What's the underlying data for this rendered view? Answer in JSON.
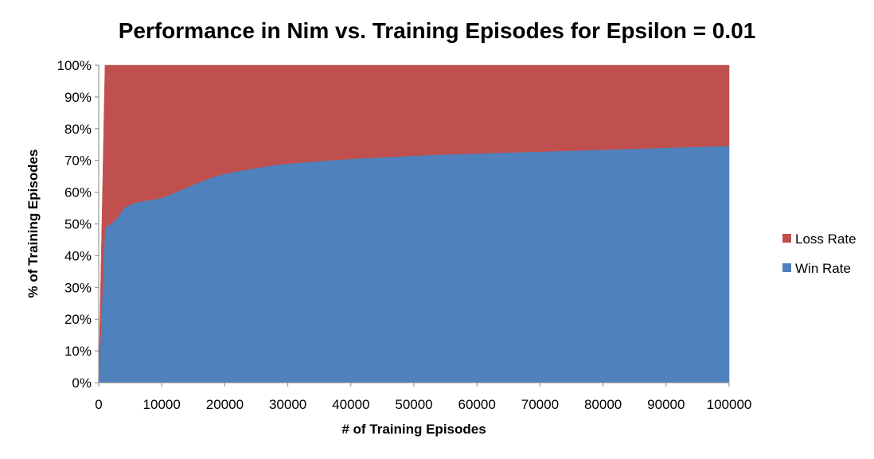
{
  "chart_data": {
    "type": "area",
    "stacked": true,
    "percent_stacked": true,
    "title": "Performance in Nim vs. Training Episodes for Epsilon = 0.01",
    "xlabel": "# of Training Episodes",
    "ylabel": "% of Training Episodes",
    "xlim": [
      0,
      100000
    ],
    "ylim": [
      0,
      100
    ],
    "x_ticks": [
      "0",
      "10000",
      "20000",
      "30000",
      "40000",
      "50000",
      "60000",
      "70000",
      "80000",
      "90000",
      "100000"
    ],
    "y_ticks": [
      "0%",
      "10%",
      "20%",
      "30%",
      "40%",
      "50%",
      "60%",
      "70%",
      "80%",
      "90%",
      "100%"
    ],
    "grid": false,
    "legend_position": "right",
    "x": [
      0,
      1000,
      2000,
      3000,
      4000,
      5000,
      6000,
      7000,
      8000,
      9000,
      10000,
      12000,
      14000,
      16000,
      18000,
      20000,
      22000,
      25000,
      28000,
      30000,
      35000,
      40000,
      45000,
      50000,
      55000,
      60000,
      65000,
      70000,
      75000,
      80000,
      85000,
      90000,
      95000,
      100000
    ],
    "series": [
      {
        "name": "Win Rate",
        "color": "#4f81bd",
        "values": [
          0,
          49,
          50,
          52,
          55,
          56,
          56.8,
          57.2,
          57.5,
          57.8,
          58.2,
          59.8,
          61.5,
          63.2,
          64.7,
          65.8,
          66.6,
          67.6,
          68.6,
          69.0,
          69.8,
          70.5,
          71.0,
          71.5,
          71.9,
          72.2,
          72.5,
          72.8,
          73.1,
          73.4,
          73.7,
          74.0,
          74.3,
          74.6
        ]
      },
      {
        "name": "Loss Rate",
        "color": "#c0504d",
        "values": [
          0,
          51,
          50,
          48,
          45,
          44,
          43.2,
          42.8,
          42.5,
          42.2,
          41.8,
          40.2,
          38.5,
          36.8,
          35.3,
          34.2,
          33.4,
          32.4,
          31.4,
          31.0,
          30.2,
          29.5,
          29.0,
          28.5,
          28.1,
          27.8,
          27.5,
          27.2,
          26.9,
          26.6,
          26.3,
          26.0,
          25.7,
          25.4
        ]
      }
    ],
    "legend": [
      {
        "name": "Loss Rate",
        "color": "#c0504d"
      },
      {
        "name": "Win Rate",
        "color": "#4f81bd"
      }
    ]
  }
}
